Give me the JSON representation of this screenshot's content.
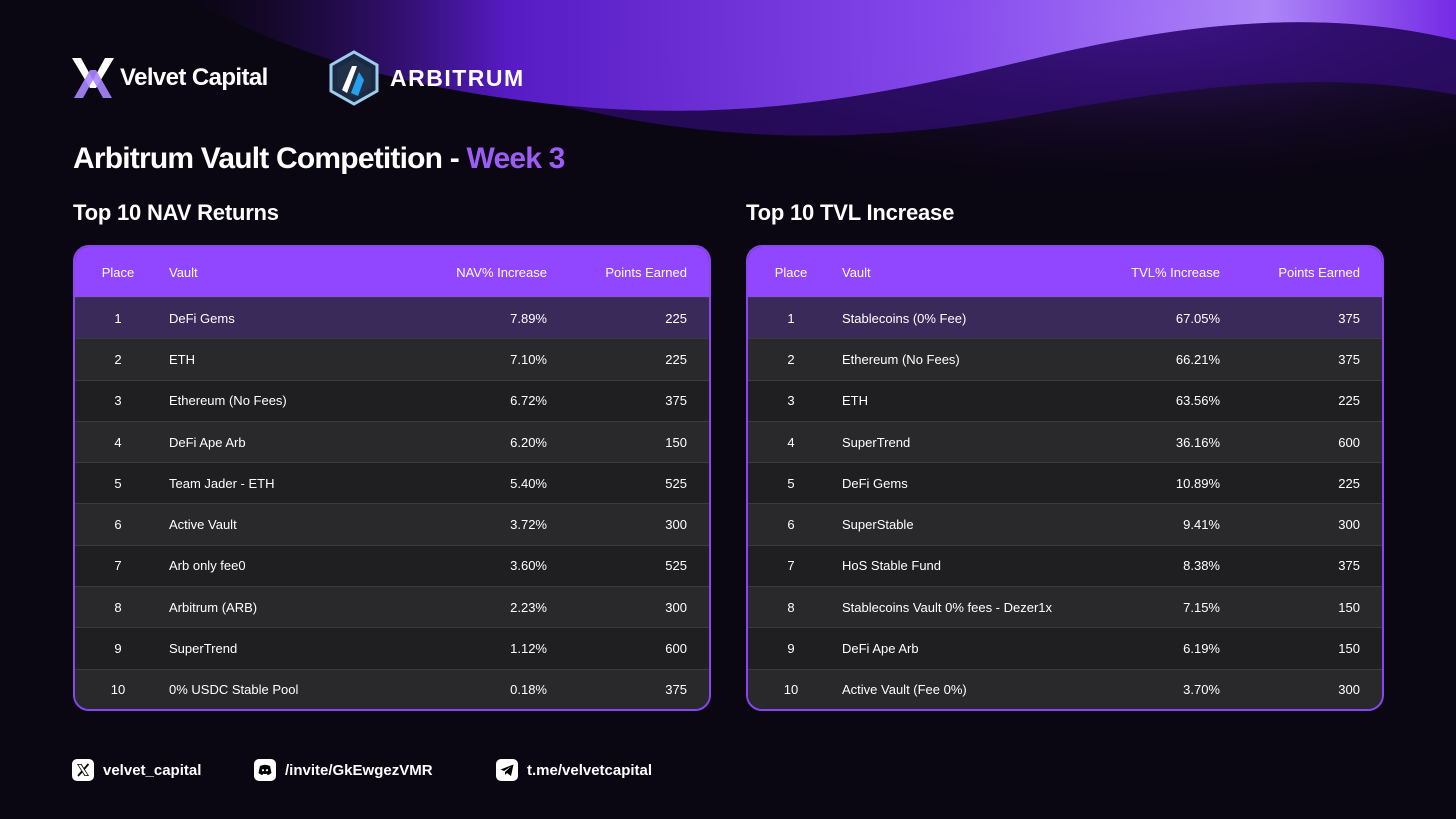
{
  "brand": {
    "velvet_name": "Velvet Capital",
    "arbitrum_name": "ARBITRUM",
    "accent_color": "#9146ff",
    "highlight_color": "#9d5cf6"
  },
  "headline": {
    "main": "Arbitrum Vault Competition - ",
    "accent": "Week 3"
  },
  "nav_table": {
    "title": "Top 10 NAV Returns",
    "columns": [
      "Place",
      "Vault",
      "NAV% Increase",
      "Points Earned"
    ],
    "rows": [
      {
        "place": "1",
        "vault": "DeFi Gems",
        "pct": "7.89%",
        "points": "225"
      },
      {
        "place": "2",
        "vault": "ETH",
        "pct": "7.10%",
        "points": "225"
      },
      {
        "place": "3",
        "vault": "Ethereum (No Fees)",
        "pct": "6.72%",
        "points": "375"
      },
      {
        "place": "4",
        "vault": "DeFi Ape Arb",
        "pct": "6.20%",
        "points": "150"
      },
      {
        "place": "5",
        "vault": "Team Jader - ETH",
        "pct": "5.40%",
        "points": "525"
      },
      {
        "place": "6",
        "vault": "Active Vault",
        "pct": "3.72%",
        "points": "300"
      },
      {
        "place": "7",
        "vault": "Arb only fee0",
        "pct": "3.60%",
        "points": "525"
      },
      {
        "place": "8",
        "vault": "Arbitrum (ARB)",
        "pct": "2.23%",
        "points": "300"
      },
      {
        "place": "9",
        "vault": "SuperTrend",
        "pct": "1.12%",
        "points": "600"
      },
      {
        "place": "10",
        "vault": "0% USDC Stable Pool",
        "pct": "0.18%",
        "points": "375"
      }
    ]
  },
  "tvl_table": {
    "title": "Top 10 TVL Increase",
    "columns": [
      "Place",
      "Vault",
      "TVL% Increase",
      "Points Earned"
    ],
    "rows": [
      {
        "place": "1",
        "vault": "Stablecoins (0% Fee)",
        "pct": "67.05%",
        "points": "375"
      },
      {
        "place": "2",
        "vault": "Ethereum (No Fees)",
        "pct": "66.21%",
        "points": "375"
      },
      {
        "place": "3",
        "vault": "ETH",
        "pct": "63.56%",
        "points": "225"
      },
      {
        "place": "4",
        "vault": "SuperTrend",
        "pct": "36.16%",
        "points": "600"
      },
      {
        "place": "5",
        "vault": "DeFi Gems",
        "pct": "10.89%",
        "points": "225"
      },
      {
        "place": "6",
        "vault": "SuperStable",
        "pct": "9.41%",
        "points": "300"
      },
      {
        "place": "7",
        "vault": "HoS Stable Fund",
        "pct": "8.38%",
        "points": "375"
      },
      {
        "place": "8",
        "vault": "Stablecoins Vault 0% fees - Dezer1x",
        "pct": "7.15%",
        "points": "150"
      },
      {
        "place": "9",
        "vault": "DeFi Ape Arb",
        "pct": "6.19%",
        "points": "150"
      },
      {
        "place": "10",
        "vault": "Active Vault (Fee 0%)",
        "pct": "3.70%",
        "points": "300"
      }
    ]
  },
  "footer": {
    "x_handle": "velvet_capital",
    "x_icon": "x-icon",
    "discord_invite": "/invite/GkEwgezVMR",
    "discord_icon": "discord-icon",
    "telegram_link": "t.me/velvetcapital",
    "telegram_icon": "telegram-icon"
  }
}
